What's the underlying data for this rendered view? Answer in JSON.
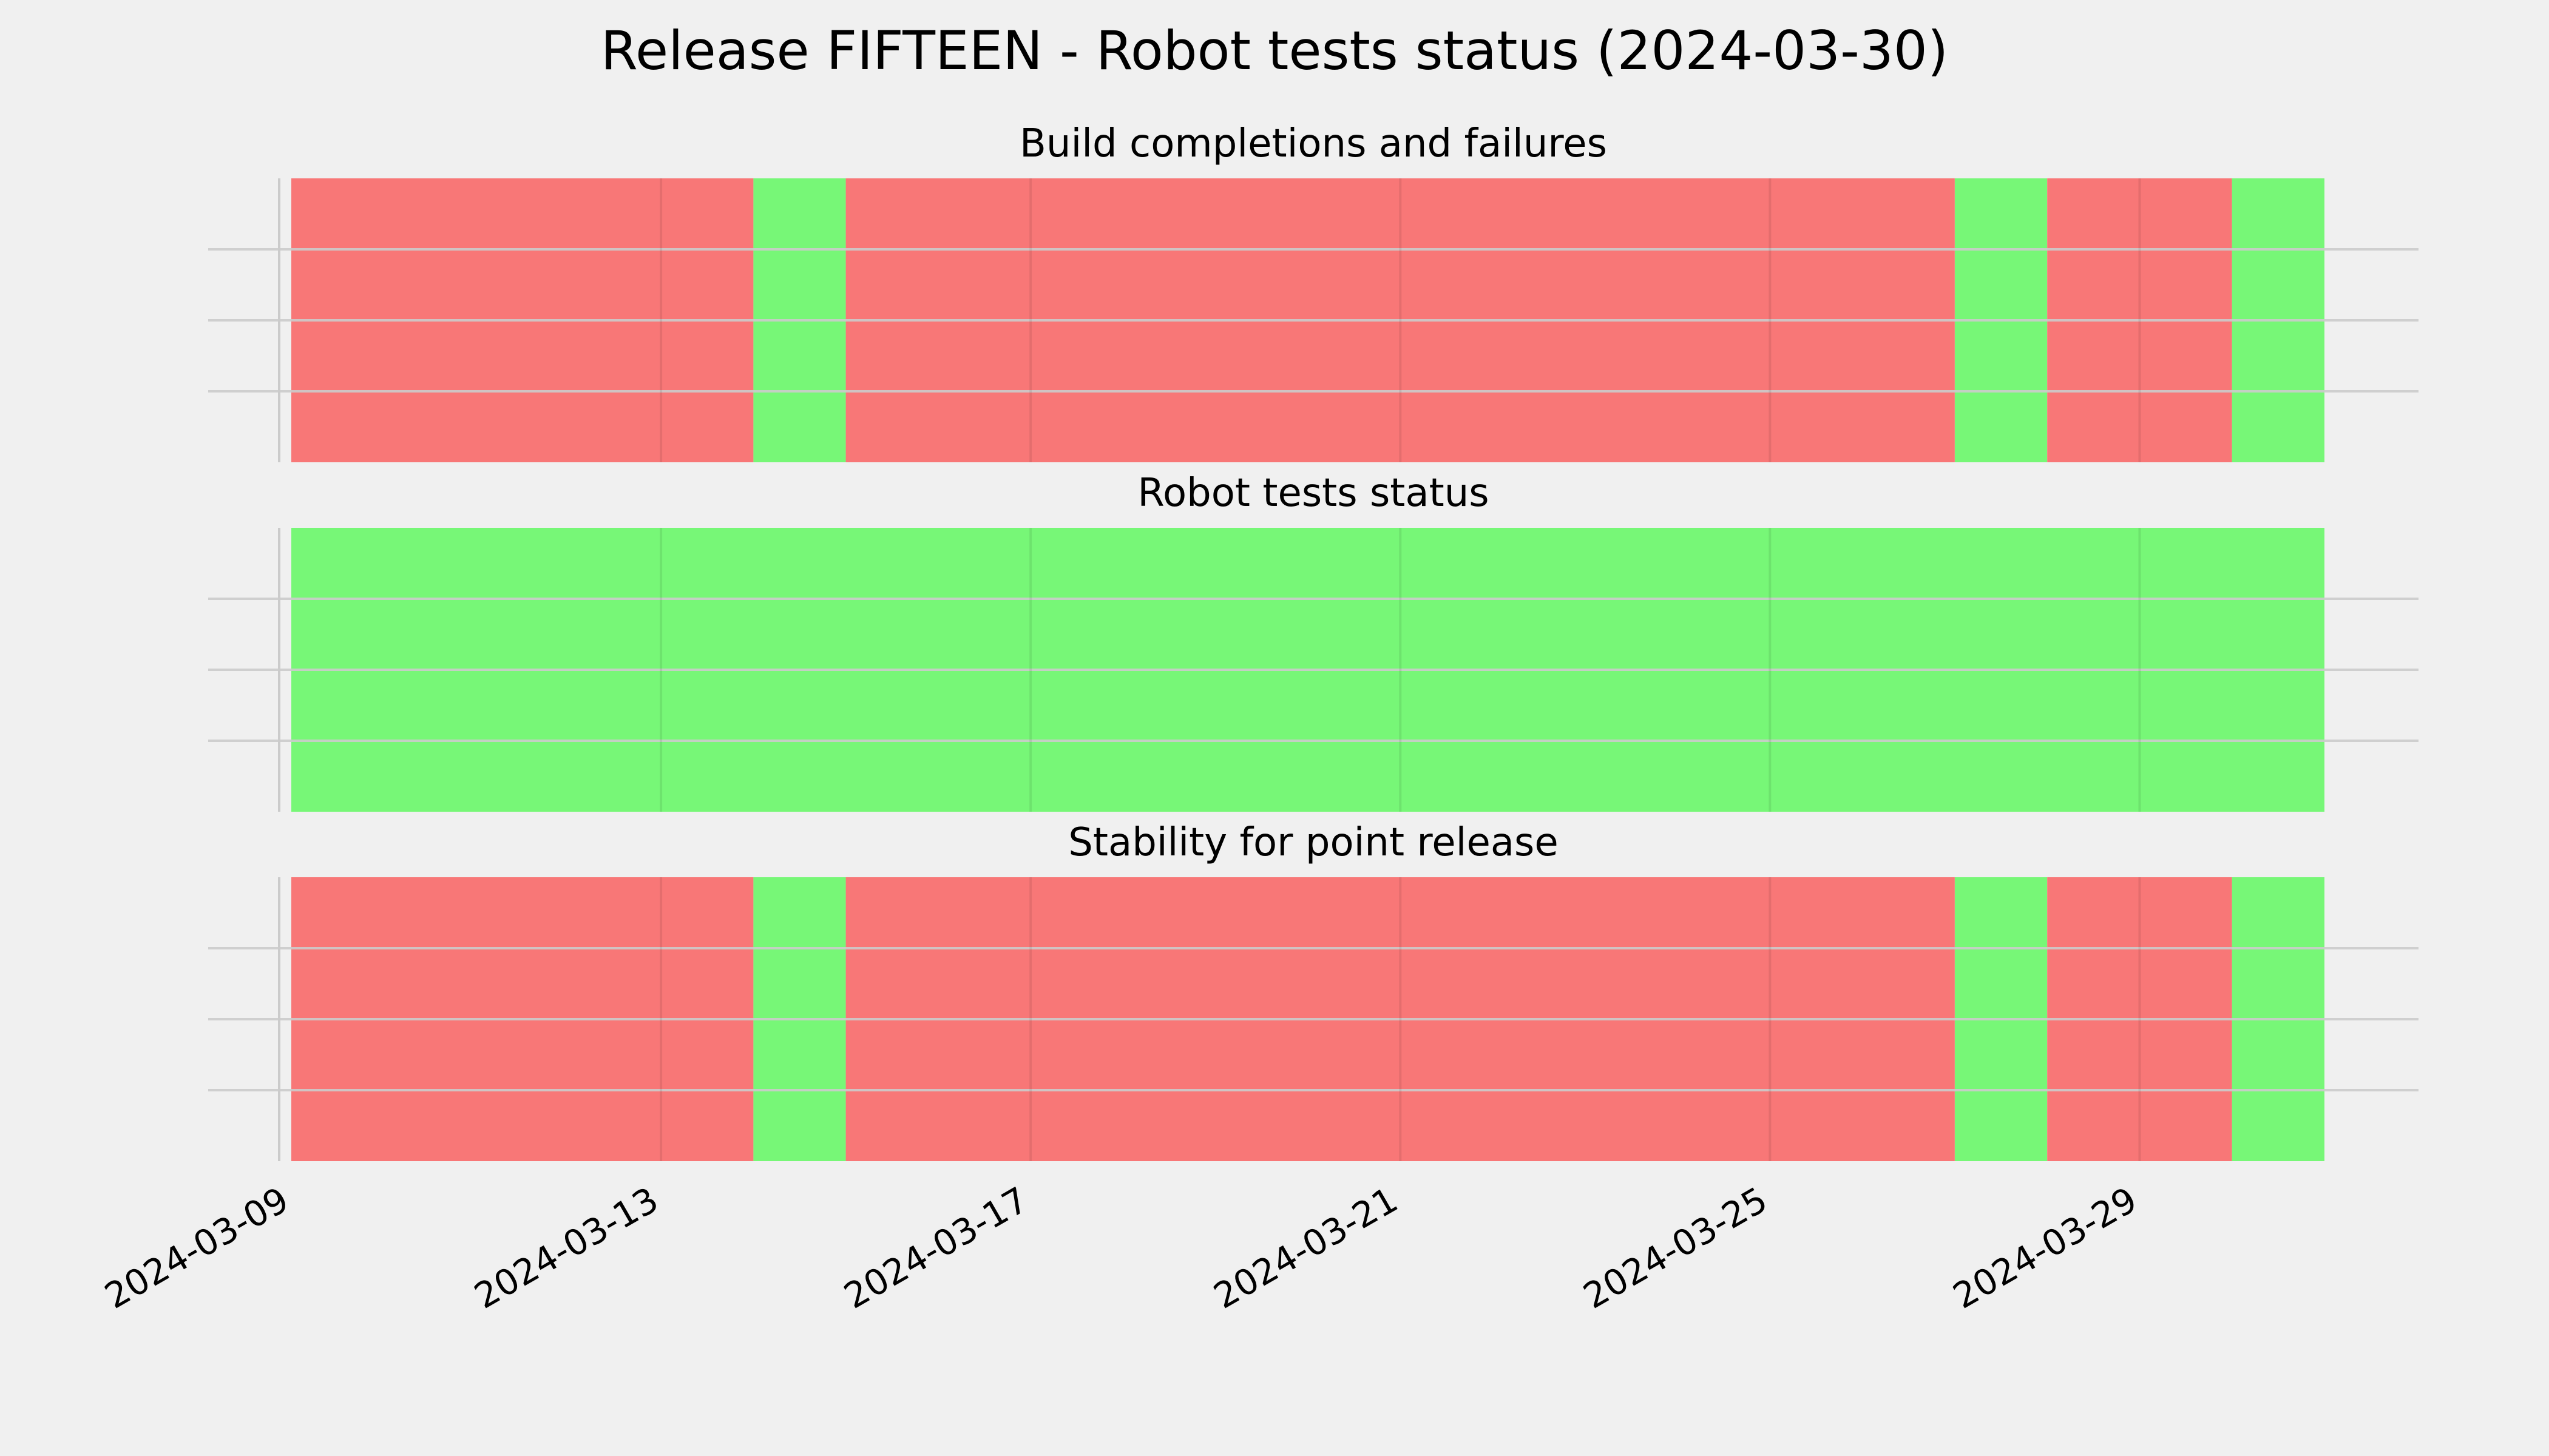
{
  "title": "Release FIFTEEN - Robot tests status (2024-03-30)",
  "colors": {
    "background": "#f0f0f0",
    "fail": "#f87777",
    "success": "#77f777",
    "grid": "#cbcbcb"
  },
  "chart_data": {
    "type": "bar",
    "layout": "stacked-panels",
    "x_axis": {
      "type": "date",
      "range": [
        "2024-03-09",
        "2024-03-31"
      ],
      "ticks": [
        "2024-03-09",
        "2024-03-13",
        "2024-03-17",
        "2024-03-21",
        "2024-03-25",
        "2024-03-29"
      ],
      "tick_labels": [
        "2024-03-09",
        "2024-03-13",
        "2024-03-17",
        "2024-03-21",
        "2024-03-25",
        "2024-03-29"
      ]
    },
    "grid": true,
    "panels": [
      {
        "title": "Build completions and failures",
        "segments": [
          {
            "start": "2024-03-09",
            "end": "2024-03-14",
            "status": "fail"
          },
          {
            "start": "2024-03-14",
            "end": "2024-03-15",
            "status": "success"
          },
          {
            "start": "2024-03-15",
            "end": "2024-03-27",
            "status": "fail"
          },
          {
            "start": "2024-03-27",
            "end": "2024-03-28",
            "status": "success"
          },
          {
            "start": "2024-03-28",
            "end": "2024-03-29",
            "status": "fail"
          },
          {
            "start": "2024-03-29",
            "end": "2024-03-30",
            "status": "fail"
          },
          {
            "start": "2024-03-30",
            "end": "2024-03-31",
            "status": "success"
          }
        ]
      },
      {
        "title": "Robot tests status",
        "segments": [
          {
            "start": "2024-03-09",
            "end": "2024-03-31",
            "status": "success"
          }
        ]
      },
      {
        "title": "Stability for point release",
        "segments": [
          {
            "start": "2024-03-09",
            "end": "2024-03-14",
            "status": "fail"
          },
          {
            "start": "2024-03-14",
            "end": "2024-03-15",
            "status": "success"
          },
          {
            "start": "2024-03-15",
            "end": "2024-03-27",
            "status": "fail"
          },
          {
            "start": "2024-03-27",
            "end": "2024-03-28",
            "status": "success"
          },
          {
            "start": "2024-03-28",
            "end": "2024-03-29",
            "status": "fail"
          },
          {
            "start": "2024-03-29",
            "end": "2024-03-30",
            "status": "fail"
          },
          {
            "start": "2024-03-30",
            "end": "2024-03-31",
            "status": "success"
          }
        ]
      }
    ]
  }
}
